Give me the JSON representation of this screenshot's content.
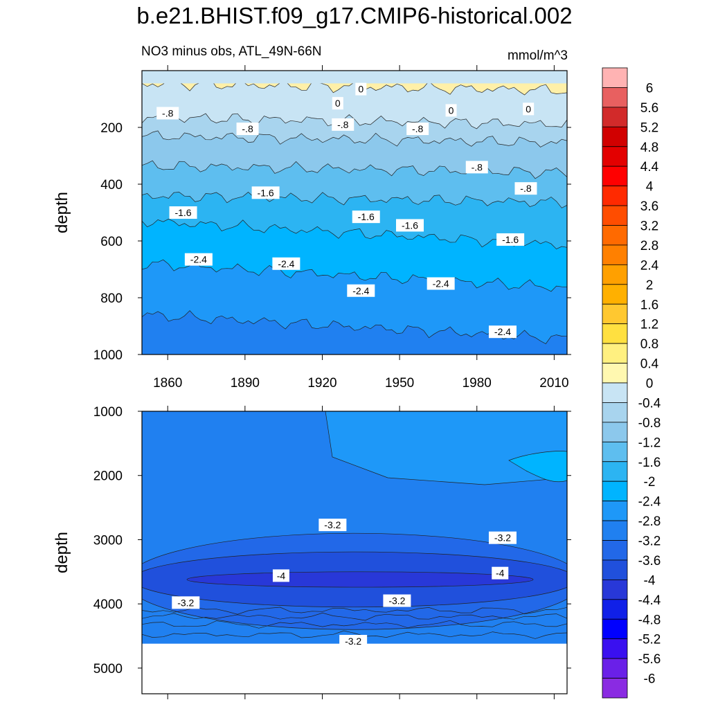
{
  "figure": {
    "title": "b.e21.BHIST.f09_g17.CMIP6-historical.002",
    "subtitle": "NO3 minus obs, ATL_49N-66N",
    "units": "mmol/m^3"
  },
  "chart_data": [
    {
      "type": "heatmap",
      "panel": "upper",
      "ylabel": "depth",
      "xlabel": "",
      "xlim": [
        1850,
        2015
      ],
      "ylim": [
        1000,
        0
      ],
      "x_ticks": [
        1860,
        1890,
        1920,
        1950,
        1980,
        2010
      ],
      "y_ticks": [
        200,
        400,
        600,
        800,
        1000
      ],
      "contour_labels": [
        {
          "text": "-.8",
          "x": 1860,
          "y": 150
        },
        {
          "text": "-.8",
          "x": 1891,
          "y": 205
        },
        {
          "text": "-.8",
          "x": 1928,
          "y": 190
        },
        {
          "text": "-.8",
          "x": 1957,
          "y": 205
        },
        {
          "text": "-.8",
          "x": 1980,
          "y": 340
        },
        {
          "text": "-.8",
          "x": 1999,
          "y": 415
        },
        {
          "text": "0",
          "x": 1935,
          "y": 65
        },
        {
          "text": "0",
          "x": 1926,
          "y": 115
        },
        {
          "text": "0",
          "x": 1970,
          "y": 140
        },
        {
          "text": "0",
          "x": 2000,
          "y": 135
        },
        {
          "text": "-1.6",
          "x": 1866,
          "y": 500
        },
        {
          "text": "-1.6",
          "x": 1898,
          "y": 430
        },
        {
          "text": "-1.6",
          "x": 1937,
          "y": 515
        },
        {
          "text": "-1.6",
          "x": 1954,
          "y": 545
        },
        {
          "text": "-1.6",
          "x": 1993,
          "y": 595
        },
        {
          "text": "-2.4",
          "x": 1872,
          "y": 665
        },
        {
          "text": "-2.4",
          "x": 1906,
          "y": 680
        },
        {
          "text": "-2.4",
          "x": 1935,
          "y": 775
        },
        {
          "text": "-2.4",
          "x": 1966,
          "y": 750
        },
        {
          "text": "-2.4",
          "x": 1990,
          "y": 920
        }
      ],
      "band_boundaries_depth": [
        {
          "level": 0,
          "depth": 45
        },
        {
          "level": -0.4,
          "depth": 165
        },
        {
          "level": -0.8,
          "depth": 230
        },
        {
          "level": -1.2,
          "depth": 335
        },
        {
          "level": -1.6,
          "depth": 440
        },
        {
          "level": -2.0,
          "depth": 530
        },
        {
          "level": -2.4,
          "depth": 680
        },
        {
          "level": -2.8,
          "depth": 860
        }
      ]
    },
    {
      "type": "heatmap",
      "panel": "lower",
      "ylabel": "depth",
      "xlabel": "",
      "xlim": [
        1850,
        2015
      ],
      "ylim": [
        5400,
        1000
      ],
      "x_ticks": [
        1860,
        1890,
        1920,
        1950,
        1980,
        2010
      ],
      "y_ticks": [
        1000,
        2000,
        3000,
        4000,
        5000
      ],
      "no_data_below_depth": 4620,
      "contour_labels": [
        {
          "text": "-3.2",
          "x": 1924,
          "y": 2770
        },
        {
          "text": "-3.2",
          "x": 1990,
          "y": 2970
        },
        {
          "text": "-4",
          "x": 1904,
          "y": 3560
        },
        {
          "text": "-4",
          "x": 1989,
          "y": 3520
        },
        {
          "text": "-3.2",
          "x": 1867,
          "y": 3980
        },
        {
          "text": "-3.2",
          "x": 1949,
          "y": 3950
        },
        {
          "text": "-3.2",
          "x": 1932,
          "y": 4580
        }
      ]
    }
  ],
  "colorbar": {
    "labels": [
      "6",
      "5.6",
      "5.2",
      "4.8",
      "4.4",
      "4",
      "3.6",
      "3.2",
      "2.8",
      "2.4",
      "2",
      "1.6",
      "1.2",
      "0.8",
      "0.4",
      "0",
      "-0.4",
      "-0.8",
      "-1.2",
      "-1.6",
      "-2",
      "-2.4",
      "-2.8",
      "-3.2",
      "-3.6",
      "-4",
      "-4.4",
      "-4.8",
      "-5.2",
      "-5.6",
      "-6"
    ],
    "colors": [
      "#ffb3b3",
      "#e86060",
      "#d22a2a",
      "#d10000",
      "#e30000",
      "#ff0000",
      "#ff2a00",
      "#ff4d00",
      "#ff6a00",
      "#ff8000",
      "#ffa000",
      "#ffb000",
      "#ffc830",
      "#ffe040",
      "#fff080",
      "#fff8b0",
      "#c8e4f4",
      "#a8d4ee",
      "#8cc8ec",
      "#5ebeef",
      "#2cb4f2",
      "#00b4ff",
      "#1e98f8",
      "#2080f0",
      "#2268e8",
      "#2050dc",
      "#2838d8",
      "#1020e8",
      "#0000ff",
      "#3a10f0",
      "#6a20e8",
      "#8a2be2"
    ]
  },
  "colors": {
    "upper_bands": [
      "#fff0a8",
      "#c8e4f4",
      "#a8d4ee",
      "#8cc8ec",
      "#5ebeef",
      "#2cb4f2",
      "#00b4ff",
      "#1e98f8",
      "#2080f0"
    ],
    "lower_bands": [
      "#2080f0",
      "#2268e8",
      "#2050dc",
      "#2838d8"
    ],
    "light_patch": "#1e98f8",
    "bright_patch": "#00b4ff",
    "missing": "#ffffff"
  }
}
